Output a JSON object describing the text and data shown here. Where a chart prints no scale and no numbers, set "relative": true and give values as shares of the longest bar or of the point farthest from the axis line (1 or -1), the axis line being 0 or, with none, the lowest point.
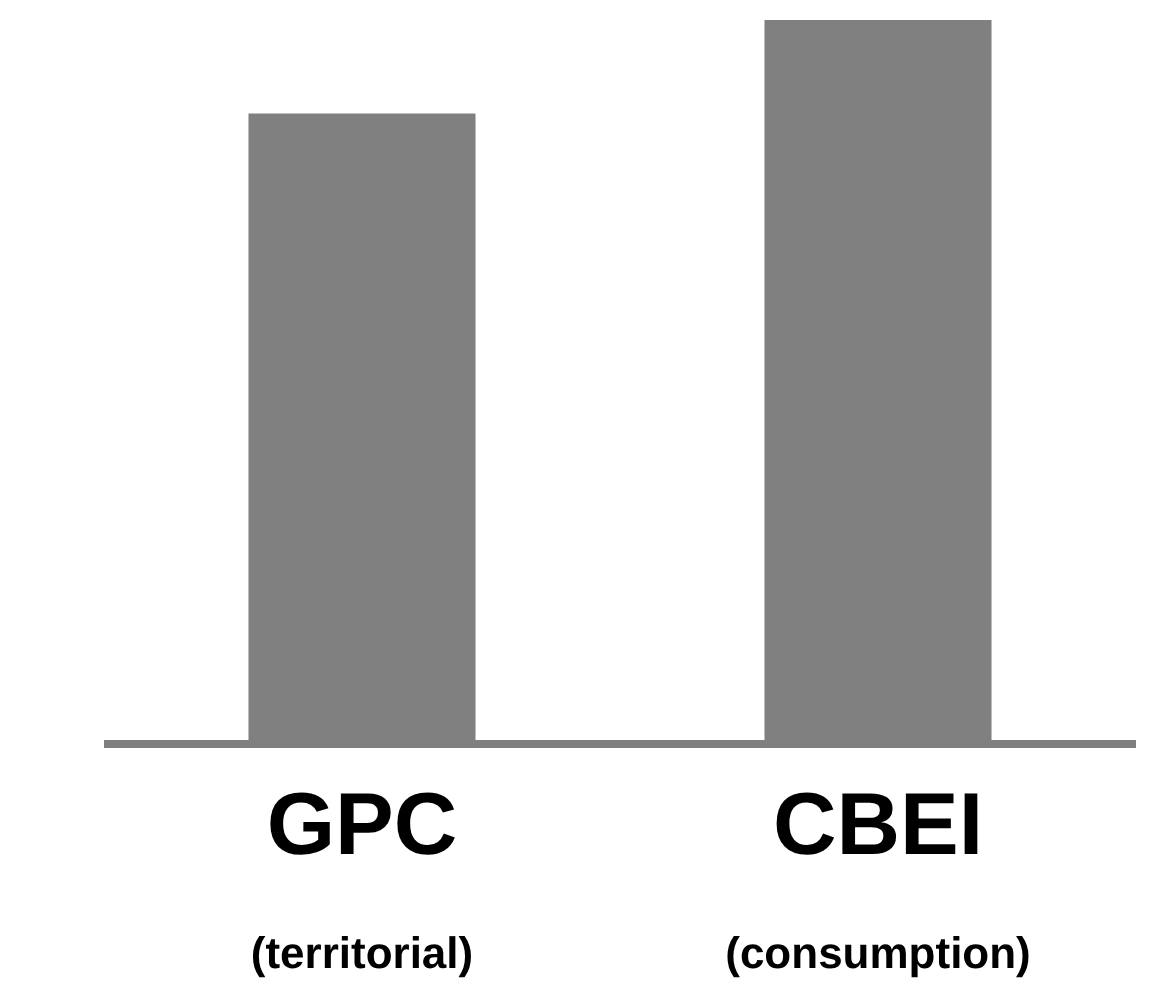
{
  "chart_data": {
    "type": "bar",
    "relative": true,
    "categories": [
      "GPC\n(territorial)",
      "CBEI\n(consumption)"
    ],
    "values": [
      0.87,
      1
    ],
    "color": "#808080"
  }
}
